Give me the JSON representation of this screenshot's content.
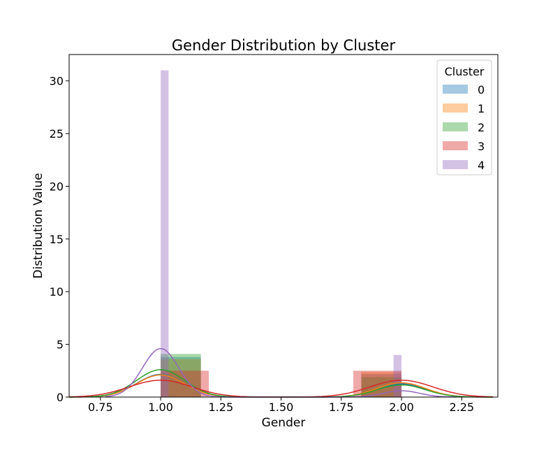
{
  "chart_data": {
    "type": "histogram",
    "title": "Gender Distribution by Cluster",
    "xlabel": "Gender",
    "ylabel": "Distribution Value",
    "xlim": [
      0.62,
      2.4
    ],
    "ylim": [
      0,
      32.5
    ],
    "xticks": [
      0.75,
      1.0,
      1.25,
      1.5,
      1.75,
      2.0,
      2.25
    ],
    "xtick_labels": [
      "0.75",
      "1.00",
      "1.25",
      "1.50",
      "1.75",
      "2.00",
      "2.25"
    ],
    "yticks": [
      0,
      5,
      10,
      15,
      20,
      25,
      30
    ],
    "ytick_labels": [
      "0",
      "5",
      "10",
      "15",
      "20",
      "25",
      "30"
    ],
    "grid": false,
    "legend": {
      "title": "Cluster",
      "position": "top-right"
    },
    "series": [
      {
        "name": "0",
        "color": "#1f77b4",
        "bars": [
          {
            "x0": 1.0,
            "x1": 1.167,
            "y": 3.8
          },
          {
            "x0": 1.833,
            "x1": 2.0,
            "y": 2.2
          }
        ],
        "kde": {
          "peaks": [
            {
              "mu": 1.0,
              "sigma": 0.1,
              "height": 2.15
            },
            {
              "mu": 2.0,
              "sigma": 0.1,
              "height": 1.25
            }
          ],
          "xmin": 0.62,
          "xmax": 2.38
        }
      },
      {
        "name": "1",
        "color": "#ff7f0e",
        "bars": [
          {
            "x0": 1.0,
            "x1": 1.167,
            "y": 3.6
          },
          {
            "x0": 1.833,
            "x1": 2.0,
            "y": 2.4
          }
        ],
        "kde": {
          "peaks": [
            {
              "mu": 1.0,
              "sigma": 0.1,
              "height": 2.1
            },
            {
              "mu": 2.0,
              "sigma": 0.1,
              "height": 1.35
            }
          ],
          "xmin": 0.62,
          "xmax": 2.38
        }
      },
      {
        "name": "2",
        "color": "#2ca02c",
        "bars": [
          {
            "x0": 1.0,
            "x1": 1.167,
            "y": 4.1
          },
          {
            "x0": 1.833,
            "x1": 2.0,
            "y": 1.9
          }
        ],
        "kde": {
          "peaks": [
            {
              "mu": 1.0,
              "sigma": 0.1,
              "height": 2.6
            },
            {
              "mu": 2.0,
              "sigma": 0.1,
              "height": 1.15
            }
          ],
          "xmin": 0.62,
          "xmax": 2.38
        }
      },
      {
        "name": "3",
        "color": "#d62728",
        "bars": [
          {
            "x0": 1.0,
            "x1": 1.2,
            "y": 2.5
          },
          {
            "x0": 1.8,
            "x1": 2.0,
            "y": 2.5
          }
        ],
        "kde": {
          "peaks": [
            {
              "mu": 1.0,
              "sigma": 0.13,
              "height": 1.6
            },
            {
              "mu": 2.0,
              "sigma": 0.13,
              "height": 1.6
            }
          ],
          "xmin": 0.62,
          "xmax": 2.38
        }
      },
      {
        "name": "4",
        "color": "#9467bd",
        "bars": [
          {
            "x0": 1.0,
            "x1": 1.033,
            "y": 31.0
          },
          {
            "x0": 1.967,
            "x1": 2.0,
            "y": 4.0
          }
        ],
        "kde": {
          "peaks": [
            {
              "mu": 1.0,
              "sigma": 0.075,
              "height": 4.6
            },
            {
              "mu": 2.0,
              "sigma": 0.075,
              "height": 0.6
            }
          ],
          "xmin": 0.77,
          "xmax": 2.23
        }
      }
    ]
  }
}
